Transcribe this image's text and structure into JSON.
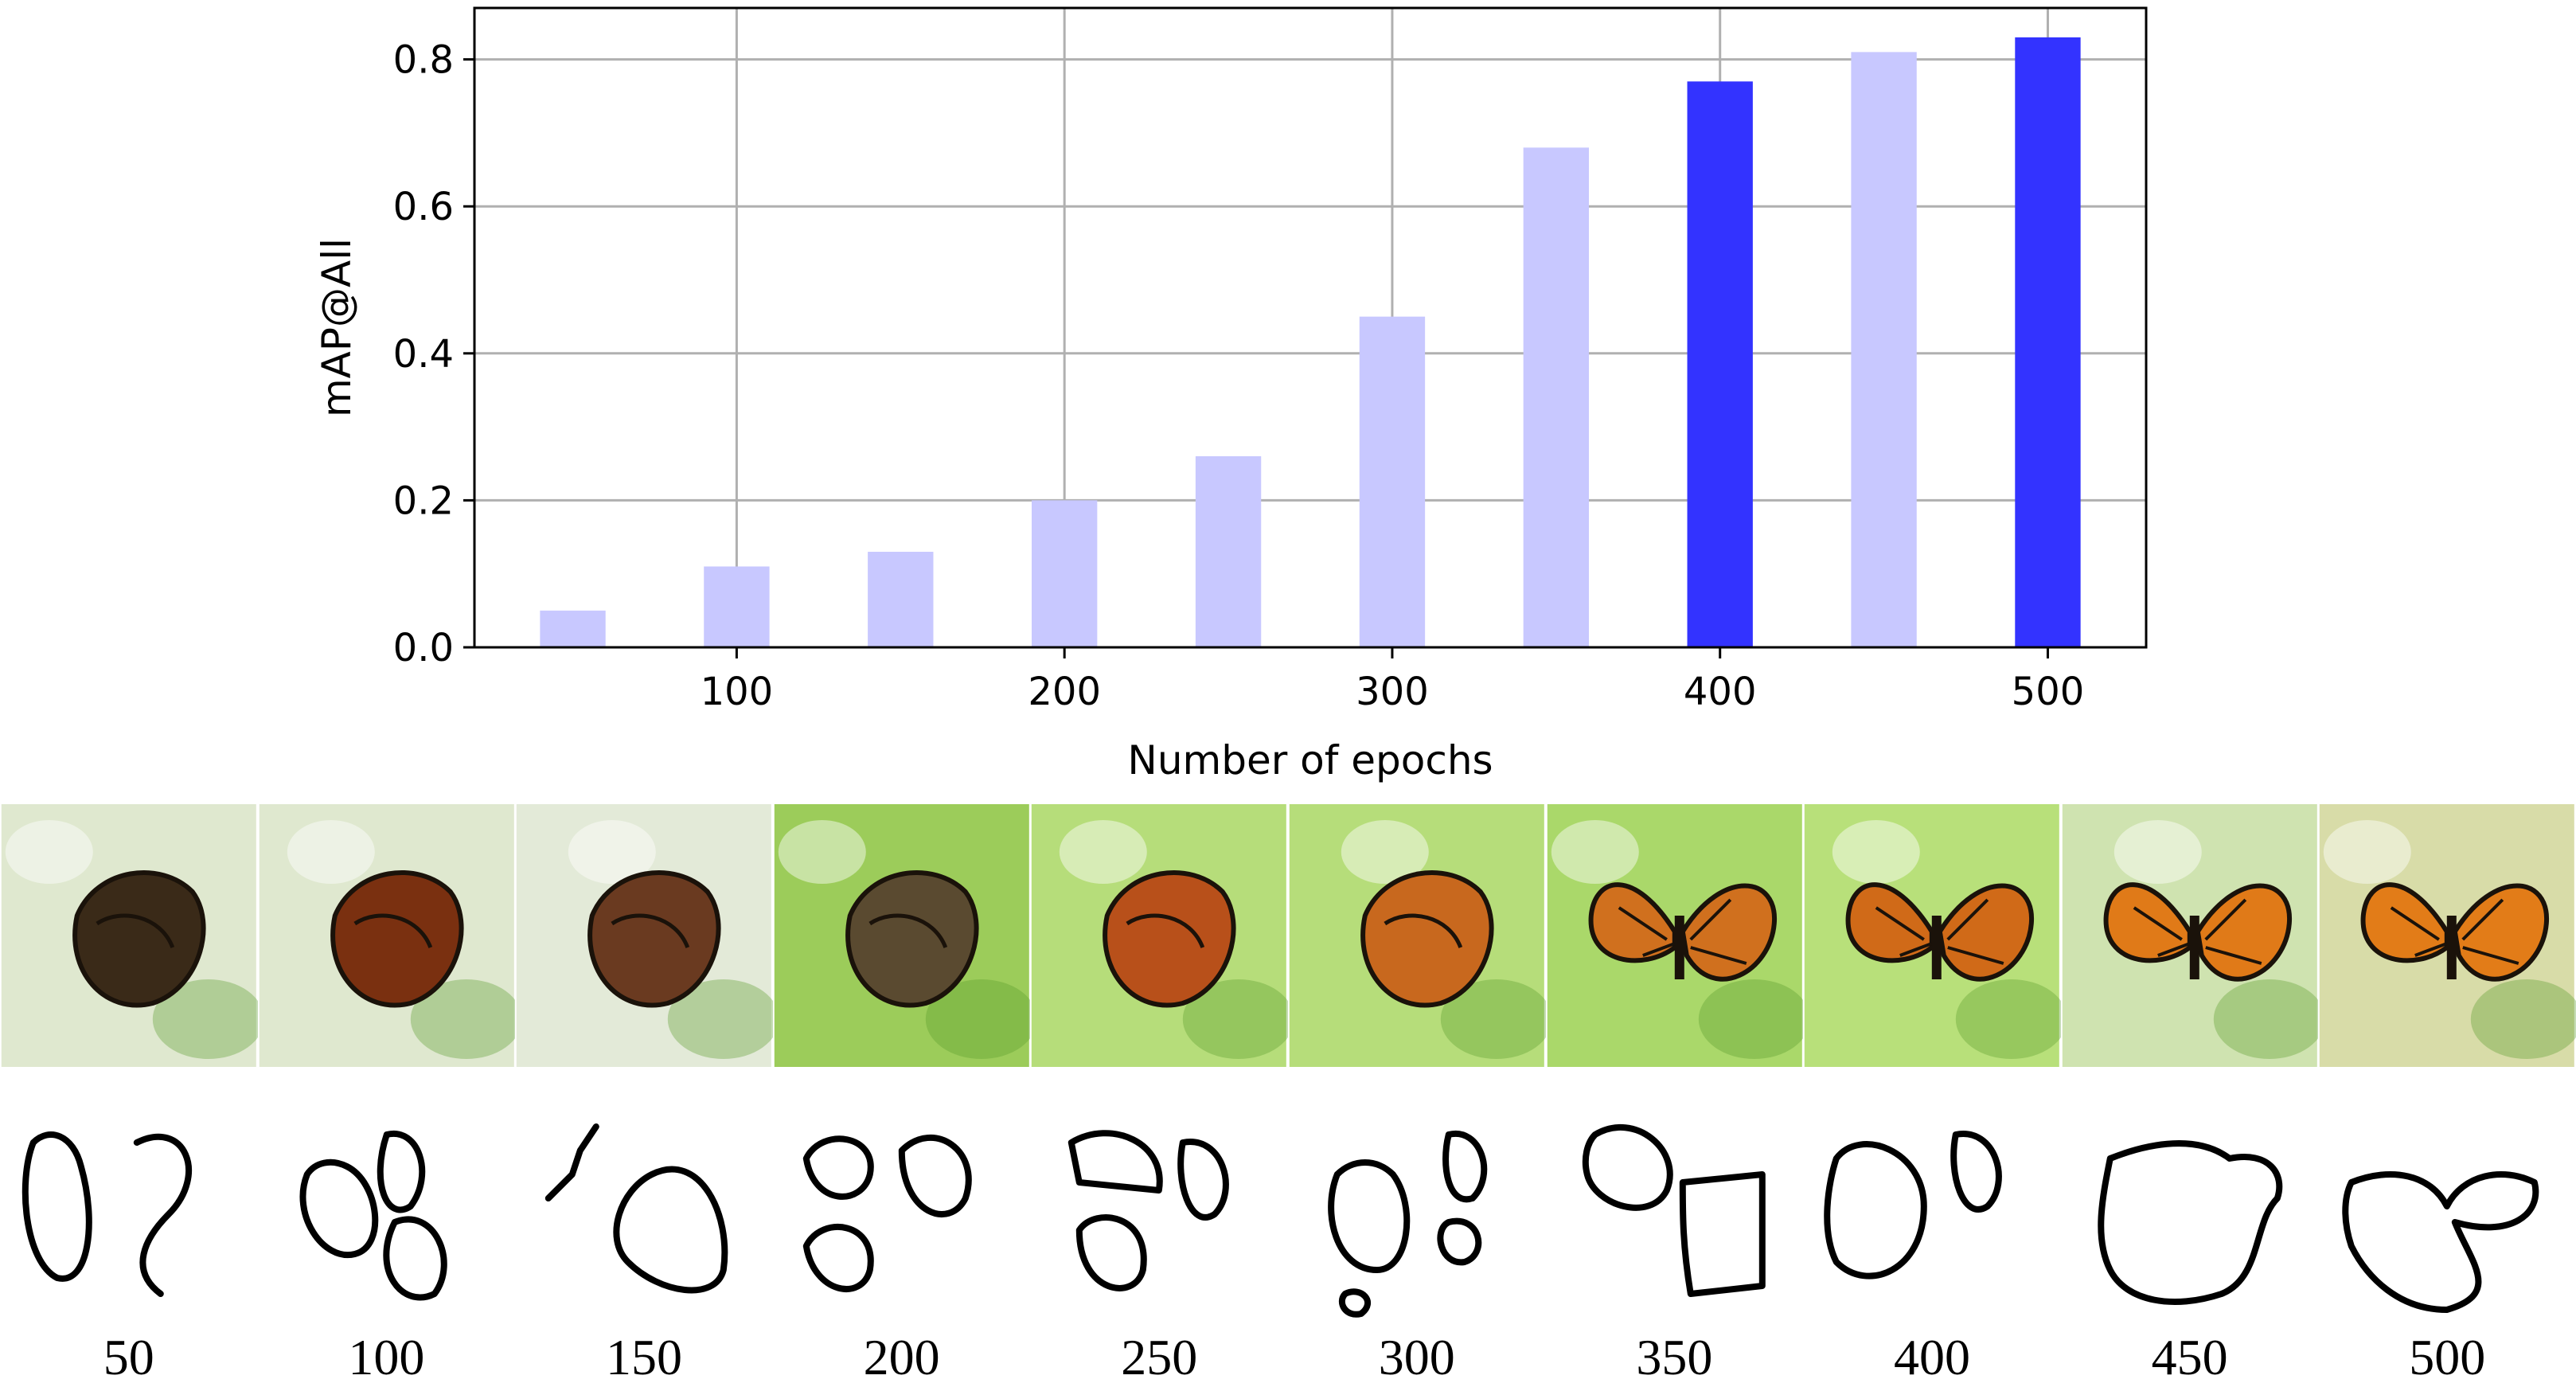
{
  "chart_data": {
    "type": "bar",
    "x": [
      50,
      100,
      150,
      200,
      250,
      300,
      350,
      400,
      450,
      500
    ],
    "values": [
      0.05,
      0.11,
      0.13,
      0.2,
      0.26,
      0.45,
      0.68,
      0.77,
      0.81,
      0.83
    ],
    "highlighted": [
      false,
      false,
      false,
      false,
      false,
      false,
      false,
      true,
      false,
      true
    ],
    "xlabel": "Number of epochs",
    "ylabel": "mAP@All",
    "xticks": [
      "100",
      "200",
      "300",
      "400",
      "500"
    ],
    "xtick_values": [
      100,
      200,
      300,
      400,
      500
    ],
    "yticks": [
      "0.0",
      "0.2",
      "0.4",
      "0.6",
      "0.8"
    ],
    "ytick_values": [
      0.0,
      0.2,
      0.4,
      0.6,
      0.8
    ],
    "xlim": [
      20,
      530
    ],
    "ylim": [
      0,
      0.87
    ],
    "grid": true,
    "colors": {
      "bar": "#c8c8ff",
      "highlight": "#3333ff",
      "grid": "#b0b0b0",
      "axis": "#000000"
    }
  },
  "figure": {
    "epoch_labels": [
      "50",
      "100",
      "150",
      "200",
      "250",
      "300",
      "350",
      "400",
      "450",
      "500"
    ],
    "photo_tiles": [
      {
        "icon": "generated-butterfly-image",
        "bg": "#dfe8cf",
        "blob": "#3a2a18"
      },
      {
        "icon": "generated-butterfly-image",
        "bg": "#dfe8cf",
        "blob": "#7a3010"
      },
      {
        "icon": "generated-butterfly-image",
        "bg": "#e3ead8",
        "blob": "#6a3a20"
      },
      {
        "icon": "generated-butterfly-image",
        "bg": "#9ccc5a",
        "blob": "#5a4a30"
      },
      {
        "icon": "generated-butterfly-image",
        "bg": "#b6dd7a",
        "blob": "#b8501a"
      },
      {
        "icon": "generated-butterfly-image",
        "bg": "#b6dd7a",
        "blob": "#c8681e"
      },
      {
        "icon": "generated-butterfly-image",
        "bg": "#aad86a",
        "blob": "#d0701e"
      },
      {
        "icon": "generated-butterfly-image",
        "bg": "#b8e07a",
        "blob": "#d06a18"
      },
      {
        "icon": "generated-butterfly-image",
        "bg": "#cfe3b0",
        "blob": "#e07a18"
      },
      {
        "icon": "generated-butterfly-image",
        "bg": "#d8dca8",
        "blob": "#e27c18"
      }
    ],
    "sketch_tiles": [
      {
        "icon": "sketch-contour-image"
      },
      {
        "icon": "sketch-contour-image"
      },
      {
        "icon": "sketch-contour-image"
      },
      {
        "icon": "sketch-contour-image"
      },
      {
        "icon": "sketch-contour-image"
      },
      {
        "icon": "sketch-contour-image"
      },
      {
        "icon": "sketch-contour-image"
      },
      {
        "icon": "sketch-contour-image"
      },
      {
        "icon": "sketch-contour-image"
      },
      {
        "icon": "sketch-contour-image"
      }
    ]
  }
}
